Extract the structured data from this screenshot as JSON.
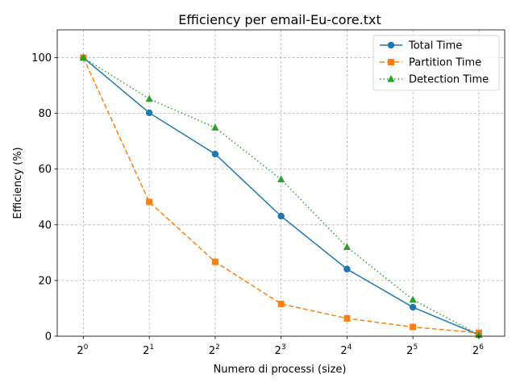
{
  "chart_data": {
    "type": "line",
    "title": "Efficiency per email-Eu-core.txt",
    "xlabel": "Numero di processi (size)",
    "ylabel": "Efficiency (%)",
    "x_scale": "log2",
    "x": [
      1,
      2,
      4,
      8,
      16,
      32,
      64
    ],
    "x_tick_labels": [
      {
        "base": "2",
        "exp": "0"
      },
      {
        "base": "2",
        "exp": "1"
      },
      {
        "base": "2",
        "exp": "2"
      },
      {
        "base": "2",
        "exp": "3"
      },
      {
        "base": "2",
        "exp": "4"
      },
      {
        "base": "2",
        "exp": "5"
      },
      {
        "base": "2",
        "exp": "6"
      }
    ],
    "xlim": [
      0.76,
      84
    ],
    "ylim": [
      0,
      110
    ],
    "y_ticks": [
      0,
      20,
      40,
      60,
      80,
      100
    ],
    "grid": true,
    "grid_style": "dashed",
    "legend_position": "top-right",
    "series": [
      {
        "name": "Total Time",
        "values": [
          100,
          80.2,
          65.4,
          43.1,
          24.1,
          10.4,
          0.5
        ],
        "color": "#1f77b4",
        "marker": "circle",
        "linestyle": "solid"
      },
      {
        "name": "Partition Time",
        "values": [
          100,
          48.2,
          26.7,
          11.6,
          6.4,
          3.3,
          1.2
        ],
        "color": "#ff7f0e",
        "marker": "square",
        "linestyle": "dashed"
      },
      {
        "name": "Detection Time",
        "values": [
          100,
          85.2,
          74.9,
          56.3,
          32.0,
          13.1,
          0.5
        ],
        "color": "#2ca02c",
        "marker": "triangle",
        "linestyle": "dotted"
      }
    ]
  }
}
